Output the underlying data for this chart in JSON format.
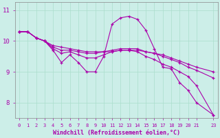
{
  "xlabel": "Windchill (Refroidissement éolien,°C)",
  "background_color": "#cceee8",
  "line_color": "#aa00aa",
  "grid_color": "#aaddcc",
  "xlim": [
    -0.5,
    23.5
  ],
  "ylim": [
    7.5,
    11.25
  ],
  "yticks": [
    8,
    9,
    10,
    11
  ],
  "ytick_labels": [
    "8",
    "9",
    "10",
    "11"
  ],
  "lines": [
    {
      "x": [
        0,
        1,
        2,
        3,
        4,
        5,
        6,
        7,
        8,
        9,
        10,
        11,
        12,
        13,
        14,
        15,
        16,
        17,
        18,
        19,
        20,
        21,
        23
      ],
      "y": [
        10.3,
        10.3,
        10.1,
        10.0,
        9.7,
        9.3,
        9.55,
        9.3,
        9.0,
        9.0,
        9.5,
        10.55,
        10.75,
        10.8,
        10.7,
        10.35,
        9.75,
        9.15,
        9.1,
        8.65,
        8.4,
        8.0,
        7.6
      ]
    },
    {
      "x": [
        0,
        1,
        2,
        3,
        4,
        5,
        6,
        7,
        8,
        9,
        10,
        11,
        12,
        13,
        14,
        15,
        16,
        17,
        18,
        19,
        20,
        21,
        23
      ],
      "y": [
        10.3,
        10.3,
        10.1,
        10.0,
        9.75,
        9.6,
        9.65,
        9.55,
        9.45,
        9.45,
        9.55,
        9.65,
        9.7,
        9.7,
        9.65,
        9.5,
        9.4,
        9.25,
        9.15,
        9.0,
        8.85,
        8.55,
        7.6
      ]
    },
    {
      "x": [
        0,
        1,
        2,
        3,
        4,
        5,
        6,
        7,
        8,
        9,
        10,
        11,
        12,
        13,
        14,
        15,
        16,
        17,
        18,
        19,
        20,
        21,
        23
      ],
      "y": [
        10.3,
        10.3,
        10.1,
        10.0,
        9.8,
        9.7,
        9.7,
        9.65,
        9.6,
        9.6,
        9.65,
        9.7,
        9.75,
        9.75,
        9.75,
        9.65,
        9.6,
        9.5,
        9.4,
        9.3,
        9.15,
        9.05,
        8.8
      ]
    },
    {
      "x": [
        0,
        1,
        2,
        3,
        4,
        5,
        6,
        7,
        8,
        9,
        10,
        11,
        12,
        13,
        14,
        15,
        16,
        17,
        18,
        19,
        20,
        21,
        23
      ],
      "y": [
        10.3,
        10.3,
        10.1,
        10.0,
        9.85,
        9.8,
        9.75,
        9.7,
        9.65,
        9.65,
        9.65,
        9.65,
        9.7,
        9.7,
        9.7,
        9.65,
        9.6,
        9.55,
        9.45,
        9.35,
        9.25,
        9.15,
        9.0
      ]
    }
  ],
  "xtick_positions": [
    0,
    1,
    2,
    3,
    4,
    5,
    6,
    7,
    8,
    9,
    10,
    11,
    12,
    13,
    14,
    15,
    16,
    17,
    18,
    19,
    20,
    21,
    23
  ],
  "xtick_labels": [
    "0",
    "1",
    "2",
    "3",
    "4",
    "5",
    "6",
    "7",
    "8",
    "9",
    "10",
    "11",
    "12",
    "13",
    "14",
    "15",
    "16",
    "17",
    "18",
    "19",
    "20",
    "21",
    "23"
  ]
}
